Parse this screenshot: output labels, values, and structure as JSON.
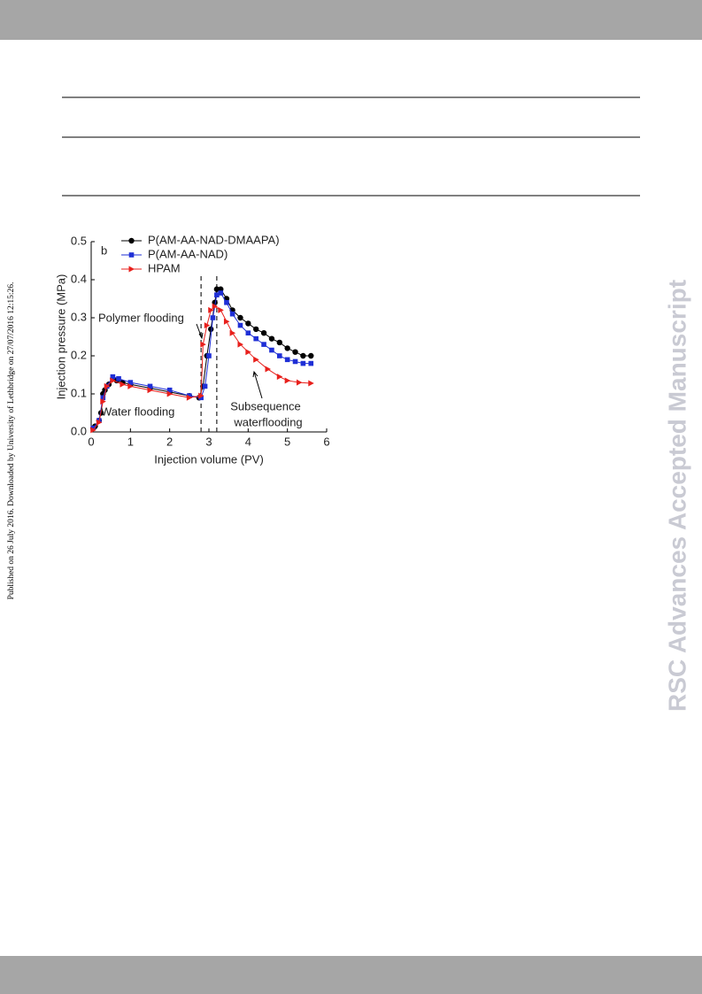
{
  "sidebar_text": "Published on 26 July 2016. Downloaded by University of Lethbridge on 27/07/2016 12:15:26.",
  "watermark": "RSC Advances Accepted Manuscript",
  "chart_data": {
    "type": "line",
    "panel_label": "b",
    "x_label": "Injection volume (PV)",
    "y_label": "Injection pressure (MPa)",
    "xlim": [
      0,
      6
    ],
    "xticks": [
      0,
      1,
      2,
      3,
      4,
      5,
      6
    ],
    "ylim": [
      0,
      0.5
    ],
    "yticks": [
      {
        "value": 0,
        "label": "0.0"
      },
      0.1,
      0.2,
      0.3,
      0.4,
      0.5
    ],
    "legend": "upper left",
    "vlines": [
      2.8,
      3.2
    ],
    "annotations": [
      "Polymer flooding",
      "Water flooding",
      "Subsequence",
      "waterflooding"
    ],
    "series": [
      {
        "name": "P(AM-AA-NAD-DMAAPA)",
        "color": "#000000",
        "marker": "circle",
        "x": [
          0.05,
          0.1,
          0.2,
          0.25,
          0.3,
          0.35,
          0.45,
          0.55,
          0.65,
          0.8,
          1.0,
          1.5,
          2.0,
          2.5,
          2.75,
          2.85,
          2.95,
          3.05,
          3.15,
          3.2,
          3.3,
          3.45,
          3.6,
          3.8,
          4.0,
          4.2,
          4.4,
          4.6,
          4.8,
          5.0,
          5.2,
          5.4,
          5.6
        ],
        "values": [
          0.01,
          0.015,
          0.03,
          0.05,
          0.1,
          0.11,
          0.125,
          0.14,
          0.135,
          0.13,
          0.125,
          0.115,
          0.105,
          0.095,
          0.09,
          0.12,
          0.2,
          0.27,
          0.34,
          0.375,
          0.375,
          0.35,
          0.32,
          0.3,
          0.285,
          0.27,
          0.26,
          0.245,
          0.235,
          0.22,
          0.21,
          0.2,
          0.2
        ]
      },
      {
        "name": "P(AM-AA-NAD)",
        "color": "#1f2fd6",
        "marker": "square",
        "x": [
          0.05,
          0.2,
          0.3,
          0.4,
          0.55,
          0.7,
          1.0,
          1.5,
          2.0,
          2.5,
          2.8,
          2.9,
          3.0,
          3.1,
          3.2,
          3.3,
          3.45,
          3.6,
          3.8,
          4.0,
          4.2,
          4.4,
          4.6,
          4.8,
          5.0,
          5.2,
          5.4,
          5.6
        ],
        "values": [
          0.01,
          0.03,
          0.09,
          0.12,
          0.145,
          0.14,
          0.13,
          0.12,
          0.11,
          0.095,
          0.09,
          0.12,
          0.2,
          0.3,
          0.36,
          0.365,
          0.34,
          0.31,
          0.28,
          0.26,
          0.245,
          0.23,
          0.215,
          0.2,
          0.19,
          0.185,
          0.18,
          0.18
        ]
      },
      {
        "name": "HPAM",
        "color": "#e8201c",
        "marker": "triangle",
        "x": [
          0.05,
          0.2,
          0.3,
          0.4,
          0.55,
          0.8,
          1.0,
          1.5,
          2.0,
          2.5,
          2.8,
          2.85,
          2.95,
          3.05,
          3.15,
          3.3,
          3.45,
          3.6,
          3.8,
          4.0,
          4.2,
          4.5,
          4.8,
          5.0,
          5.3,
          5.6
        ],
        "values": [
          0.005,
          0.025,
          0.08,
          0.12,
          0.135,
          0.125,
          0.12,
          0.11,
          0.1,
          0.09,
          0.095,
          0.23,
          0.28,
          0.32,
          0.33,
          0.32,
          0.29,
          0.26,
          0.23,
          0.21,
          0.19,
          0.165,
          0.145,
          0.135,
          0.13,
          0.128
        ]
      }
    ]
  }
}
